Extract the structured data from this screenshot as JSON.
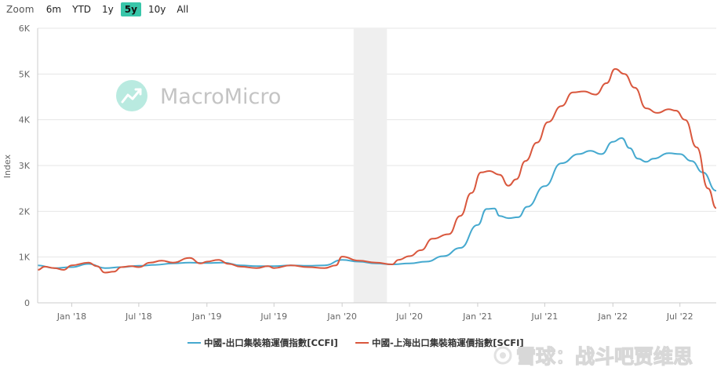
{
  "zoom": {
    "label": "Zoom",
    "options": [
      "6m",
      "YTD",
      "1y",
      "5y",
      "10y",
      "All"
    ],
    "selected": "5y"
  },
  "watermark": {
    "brand": "MacroMicro"
  },
  "attribution": "雪球：战斗吧贾维思",
  "colors": {
    "ccfi": "#45a9cf",
    "shanghai": "#d9573d",
    "brand_teal": "#38c6a9",
    "shade": "#efefef"
  },
  "chart_data": {
    "type": "line",
    "title": "",
    "xlabel": "",
    "ylabel": "Index",
    "x_range": [
      "2017-10-01",
      "2022-10-07"
    ],
    "ylim": [
      0,
      6000
    ],
    "y_ticks": [
      0,
      1000,
      2000,
      3000,
      4000,
      5000,
      6000
    ],
    "y_tick_labels": [
      "0",
      "1K",
      "2K",
      "3K",
      "4K",
      "5K",
      "6K"
    ],
    "x_ticks": [
      "2018-01-01",
      "2018-07-01",
      "2019-01-01",
      "2019-07-01",
      "2020-01-01",
      "2020-07-01",
      "2021-01-01",
      "2021-07-01",
      "2022-01-01",
      "2022-07-01"
    ],
    "x_tick_labels": [
      "Jan '18",
      "Jul '18",
      "Jan '19",
      "Jul '19",
      "Jan '20",
      "Jul '20",
      "Jan '21",
      "Jul '21",
      "Jan '22",
      "Jul '22"
    ],
    "grid": true,
    "legend_position": "bottom-center",
    "shaded_period": [
      "2020-02-01",
      "2020-05-01"
    ],
    "series": [
      {
        "name": "中國-出口集裝箱運價指數[CCFI]",
        "color": "#45a9cf",
        "points": [
          [
            "2017-10-01",
            820
          ],
          [
            "2017-11-15",
            760
          ],
          [
            "2018-01-01",
            780
          ],
          [
            "2018-02-15",
            850
          ],
          [
            "2018-04-01",
            760
          ],
          [
            "2018-05-15",
            780
          ],
          [
            "2018-07-01",
            810
          ],
          [
            "2018-08-15",
            830
          ],
          [
            "2018-10-01",
            860
          ],
          [
            "2018-11-15",
            880
          ],
          [
            "2019-01-01",
            870
          ],
          [
            "2019-02-15",
            880
          ],
          [
            "2019-04-01",
            820
          ],
          [
            "2019-05-15",
            800
          ],
          [
            "2019-07-01",
            800
          ],
          [
            "2019-08-15",
            820
          ],
          [
            "2019-10-01",
            810
          ],
          [
            "2019-11-15",
            820
          ],
          [
            "2020-01-01",
            940
          ],
          [
            "2020-02-15",
            900
          ],
          [
            "2020-04-01",
            860
          ],
          [
            "2020-05-15",
            840
          ],
          [
            "2020-07-01",
            860
          ],
          [
            "2020-08-15",
            900
          ],
          [
            "2020-10-01",
            1020
          ],
          [
            "2020-11-15",
            1200
          ],
          [
            "2021-01-01",
            1700
          ],
          [
            "2021-01-25",
            2050
          ],
          [
            "2021-02-15",
            2060
          ],
          [
            "2021-03-01",
            1900
          ],
          [
            "2021-03-25",
            1850
          ],
          [
            "2021-04-20",
            1870
          ],
          [
            "2021-05-15",
            2100
          ],
          [
            "2021-07-01",
            2550
          ],
          [
            "2021-08-15",
            3050
          ],
          [
            "2021-10-01",
            3250
          ],
          [
            "2021-11-01",
            3320
          ],
          [
            "2021-12-01",
            3250
          ],
          [
            "2022-01-01",
            3520
          ],
          [
            "2022-01-25",
            3600
          ],
          [
            "2022-02-15",
            3380
          ],
          [
            "2022-03-10",
            3150
          ],
          [
            "2022-04-01",
            3080
          ],
          [
            "2022-04-20",
            3150
          ],
          [
            "2022-06-01",
            3270
          ],
          [
            "2022-07-01",
            3250
          ],
          [
            "2022-08-01",
            3100
          ],
          [
            "2022-09-01",
            2850
          ],
          [
            "2022-10-07",
            2450
          ]
        ]
      },
      {
        "name": "中國-上海出口集裝箱運價指數[SCFI]",
        "color": "#d9573d",
        "points": [
          [
            "2017-10-01",
            720
          ],
          [
            "2017-10-20",
            790
          ],
          [
            "2017-11-15",
            760
          ],
          [
            "2017-12-10",
            720
          ],
          [
            "2018-01-01",
            820
          ],
          [
            "2018-02-15",
            880
          ],
          [
            "2018-03-10",
            800
          ],
          [
            "2018-04-01",
            660
          ],
          [
            "2018-04-25",
            680
          ],
          [
            "2018-05-15",
            780
          ],
          [
            "2018-06-10",
            800
          ],
          [
            "2018-07-01",
            780
          ],
          [
            "2018-08-01",
            880
          ],
          [
            "2018-09-01",
            920
          ],
          [
            "2018-10-01",
            880
          ],
          [
            "2018-11-15",
            980
          ],
          [
            "2018-12-15",
            860
          ],
          [
            "2019-01-01",
            900
          ],
          [
            "2019-02-01",
            940
          ],
          [
            "2019-03-01",
            850
          ],
          [
            "2019-04-01",
            790
          ],
          [
            "2019-05-15",
            760
          ],
          [
            "2019-06-15",
            800
          ],
          [
            "2019-07-01",
            760
          ],
          [
            "2019-08-15",
            820
          ],
          [
            "2019-10-01",
            780
          ],
          [
            "2019-11-15",
            760
          ],
          [
            "2019-12-15",
            820
          ],
          [
            "2020-01-01",
            1010
          ],
          [
            "2020-02-15",
            920
          ],
          [
            "2020-04-01",
            880
          ],
          [
            "2020-05-15",
            840
          ],
          [
            "2020-06-01",
            940
          ],
          [
            "2020-07-01",
            1020
          ],
          [
            "2020-08-01",
            1150
          ],
          [
            "2020-09-01",
            1400
          ],
          [
            "2020-10-15",
            1500
          ],
          [
            "2020-11-15",
            1900
          ],
          [
            "2020-12-15",
            2400
          ],
          [
            "2021-01-10",
            2850
          ],
          [
            "2021-02-01",
            2880
          ],
          [
            "2021-03-01",
            2800
          ],
          [
            "2021-03-25",
            2560
          ],
          [
            "2021-04-15",
            2700
          ],
          [
            "2021-05-10",
            3100
          ],
          [
            "2021-06-10",
            3500
          ],
          [
            "2021-07-10",
            3950
          ],
          [
            "2021-08-15",
            4300
          ],
          [
            "2021-09-15",
            4600
          ],
          [
            "2021-10-15",
            4620
          ],
          [
            "2021-11-15",
            4550
          ],
          [
            "2021-12-15",
            4800
          ],
          [
            "2022-01-07",
            5110
          ],
          [
            "2022-02-01",
            5000
          ],
          [
            "2022-03-01",
            4700
          ],
          [
            "2022-04-01",
            4250
          ],
          [
            "2022-05-01",
            4150
          ],
          [
            "2022-06-01",
            4230
          ],
          [
            "2022-06-20",
            4200
          ],
          [
            "2022-07-15",
            4000
          ],
          [
            "2022-08-15",
            3400
          ],
          [
            "2022-09-15",
            2500
          ],
          [
            "2022-10-07",
            2070
          ]
        ]
      }
    ]
  }
}
